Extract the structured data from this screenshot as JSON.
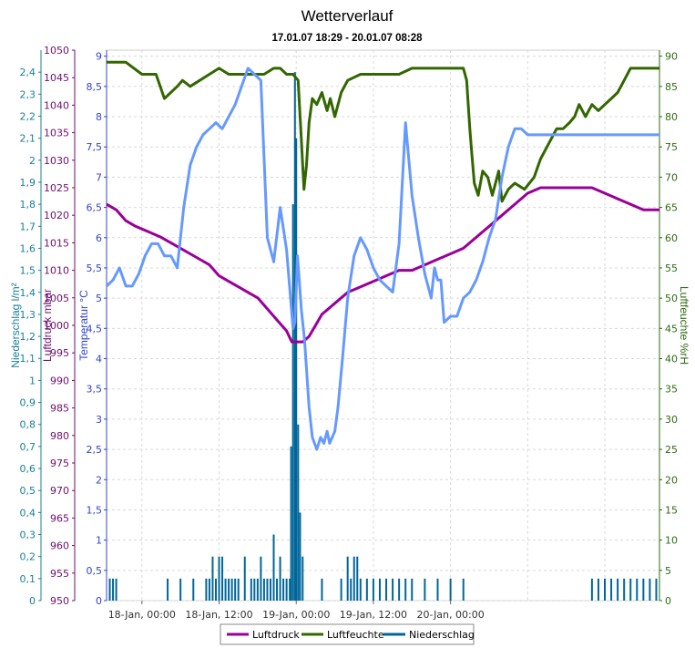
{
  "chart_data": {
    "type": "line",
    "title": "Wetterverlauf",
    "subtitle": "17.01.07 18:29 - 20.01.07 08:28",
    "x_ticks": [
      "18-Jan, 00:00",
      "18-Jan, 12:00",
      "19-Jan, 00:00",
      "19-Jan, 12:00",
      "20-Jan, 00:00"
    ],
    "xlim": [
      "17-Jan 18:29",
      "20-Jan 08:28"
    ],
    "grid": true,
    "legend_position": "bottom-center",
    "axes": [
      {
        "key": "niederschlag",
        "label": "Niederschlag l/m²",
        "side": "left",
        "color": "#1b7f96",
        "min": 0,
        "max": 2.5,
        "ticks": [
          "0",
          "0,1",
          "0,2",
          "0,3",
          "0,4",
          "0,5",
          "0,6",
          "0,7",
          "0,8",
          "0,9",
          "1",
          "1,1",
          "1,2",
          "1,3",
          "1,4",
          "1,5",
          "1,6",
          "1,7",
          "1,8",
          "1,9",
          "2",
          "2,1",
          "2,2",
          "2,3",
          "2,4"
        ]
      },
      {
        "key": "luftdruck",
        "label": "Luftdruck mbar",
        "side": "left",
        "color": "#6f0f6f",
        "min": 950,
        "max": 1050,
        "ticks": [
          "950",
          "955",
          "960",
          "965",
          "970",
          "975",
          "980",
          "985",
          "990",
          "995",
          "1000",
          "1005",
          "1010",
          "1015",
          "1020",
          "1025",
          "1030",
          "1035",
          "1040",
          "1045",
          "1050"
        ]
      },
      {
        "key": "temperatur",
        "label": "Temperatur °C",
        "side": "left",
        "color": "#3344cc",
        "min": 0,
        "max": 9.1,
        "ticks": [
          "0",
          "0,5",
          "1",
          "1,5",
          "2",
          "2,5",
          "3",
          "3,5",
          "4",
          "4,5",
          "5",
          "5,5",
          "6",
          "6,5",
          "7",
          "7,5",
          "8",
          "8,5",
          "9"
        ]
      },
      {
        "key": "luftfeuchte",
        "label": "Luftfeuchte %rH",
        "side": "right",
        "color": "#2e6b12",
        "min": 0,
        "max": 91,
        "ticks": [
          "0",
          "5",
          "10",
          "15",
          "20",
          "25",
          "30",
          "35",
          "40",
          "45",
          "50",
          "55",
          "60",
          "65",
          "70",
          "75",
          "80",
          "85",
          "90"
        ]
      }
    ],
    "series": [
      {
        "name": "Luftdruck",
        "axis": "luftdruck",
        "color": "#990099",
        "x": [
          -5.5,
          -4,
          -2.5,
          -1,
          1,
          3,
          4.5,
          6,
          7.5,
          9,
          10.5,
          12,
          13.5,
          15,
          16.5,
          18,
          19.5,
          21,
          22.5,
          23.3,
          24,
          25,
          26,
          27,
          28,
          30,
          32,
          34,
          36,
          38,
          40,
          42,
          44,
          46,
          48,
          50,
          52,
          54,
          56,
          58,
          60,
          62,
          64,
          66,
          68,
          70,
          72,
          74,
          76,
          78,
          80,
          80.5
        ],
        "y": [
          1022,
          1021,
          1019,
          1018,
          1017,
          1016,
          1015,
          1014,
          1013,
          1012,
          1011,
          1009,
          1008,
          1007,
          1006,
          1005,
          1003,
          1001,
          999,
          997,
          997,
          997,
          998,
          1000,
          1002,
          1004,
          1006,
          1007,
          1008,
          1009,
          1010,
          1010,
          1011,
          1012,
          1013,
          1014,
          1016,
          1018,
          1020,
          1022,
          1024,
          1025,
          1025,
          1025,
          1025,
          1025,
          1024,
          1023,
          1022,
          1021,
          1021,
          1021
        ]
      },
      {
        "name": "Luftfeuchte",
        "axis": "luftfeuchte",
        "color": "#336600",
        "x": [
          -5.5,
          -2.5,
          0,
          2.2,
          3.5,
          5.5,
          6.3,
          7.5,
          9,
          10.5,
          12,
          13.5,
          15,
          17,
          19,
          20.5,
          21.5,
          22.5,
          23.5,
          24.3,
          24.8,
          25.2,
          25.6,
          26,
          26.5,
          27.2,
          28,
          28.8,
          29.3,
          30,
          31,
          32,
          34,
          36,
          38,
          40,
          42,
          44,
          46,
          48,
          50,
          50.5,
          51,
          51.3,
          51.7,
          52.3,
          53,
          53.8,
          54.5,
          55.5,
          56,
          57,
          58,
          59.5,
          61,
          62,
          63.5,
          64.5,
          65.5,
          66.5,
          67.3,
          68,
          69,
          70,
          71,
          72,
          73,
          74,
          75,
          76,
          77,
          78,
          79,
          80,
          80.5
        ],
        "y": [
          89,
          89,
          87,
          87,
          83,
          85,
          86,
          85,
          86,
          87,
          88,
          87,
          87,
          87,
          87,
          88,
          88,
          87,
          87,
          86,
          76,
          68,
          72,
          79,
          83,
          82,
          84,
          81,
          83,
          80,
          84,
          86,
          87,
          87,
          87,
          87,
          88,
          88,
          88,
          88,
          88,
          86,
          78,
          74,
          69,
          67,
          71,
          70,
          67,
          71,
          66,
          68,
          69,
          68,
          70,
          73,
          76,
          78,
          78,
          79,
          80,
          82,
          80,
          82,
          81,
          82,
          83,
          84,
          86,
          88,
          88,
          88,
          88,
          88,
          88
        ]
      },
      {
        "name": "Temperatur",
        "axis": "temperatur",
        "color": "#6699ff",
        "x": [
          -5.5,
          -4.5,
          -3.5,
          -2.5,
          -1.5,
          -0.5,
          0.5,
          1.5,
          2.5,
          3.5,
          4.5,
          5.5,
          6.5,
          7.5,
          8.5,
          9.5,
          10.5,
          11.5,
          12.5,
          13.5,
          14.5,
          15.5,
          16.5,
          17.5,
          18.5,
          19.5,
          20.5,
          21.5,
          22.5,
          23.5,
          23.8,
          24.2,
          24.8,
          25.3,
          26,
          26.5,
          27.2,
          27.8,
          28.3,
          28.8,
          29.2,
          30,
          30.5,
          31.2,
          32,
          33,
          34,
          35,
          36,
          37,
          38,
          39,
          40,
          41,
          42,
          43,
          44,
          45,
          45.5,
          46,
          46.5,
          47,
          48,
          49,
          50,
          51,
          52,
          53,
          54,
          55,
          56,
          57,
          58,
          59,
          60,
          61,
          62,
          63,
          64,
          65,
          66,
          67,
          68,
          69,
          70,
          71,
          72,
          73,
          74,
          75,
          76,
          77,
          78,
          79,
          80,
          80.5
        ],
        "y": [
          5.2,
          5.3,
          5.5,
          5.2,
          5.2,
          5.4,
          5.7,
          5.9,
          5.9,
          5.7,
          5.7,
          5.5,
          6.5,
          7.2,
          7.5,
          7.7,
          7.8,
          7.9,
          7.8,
          8,
          8.2,
          8.5,
          8.8,
          8.7,
          8.6,
          6,
          5.6,
          6.5,
          5.8,
          4.5,
          4.6,
          5.7,
          4.8,
          4.3,
          3.2,
          2.7,
          2.5,
          2.7,
          2.6,
          2.8,
          2.6,
          2.8,
          3.2,
          4,
          5,
          5.7,
          6,
          5.8,
          5.5,
          5.3,
          5.2,
          5.1,
          5.9,
          7.9,
          6.7,
          6,
          5.4,
          5,
          5.5,
          5.3,
          5.3,
          4.6,
          4.7,
          4.7,
          5,
          5.1,
          5.3,
          5.6,
          6,
          6.3,
          7,
          7.5,
          7.8,
          7.8,
          7.7,
          7.7,
          7.7,
          7.7,
          7.7,
          7.7,
          7.7,
          7.7,
          7.7,
          7.7,
          7.7,
          7.7,
          7.7,
          7.7,
          7.7,
          7.7,
          7.7,
          7.7,
          7.7,
          7.7,
          7.7,
          7.7
        ]
      },
      {
        "name": "Niederschlag",
        "axis": "niederschlag",
        "color": "#006699",
        "x": [
          -5,
          -4.5,
          -4,
          4,
          6,
          8,
          10,
          10.5,
          11,
          11.5,
          12,
          12.5,
          13,
          13.5,
          14,
          14.5,
          15,
          16,
          17,
          17.5,
          18,
          18.5,
          19,
          19.5,
          20,
          20.5,
          21,
          21.5,
          22,
          22.5,
          23,
          23.2,
          23.5,
          23.8,
          24,
          24.3,
          24.6,
          25,
          28,
          31,
          32,
          32.5,
          33,
          33.5,
          34,
          35,
          36,
          37,
          38,
          39,
          40,
          41,
          42,
          44,
          46,
          48,
          50,
          70,
          71,
          72,
          73,
          74,
          75,
          76,
          77,
          78,
          79,
          80
        ],
        "y": [
          0.1,
          0.1,
          0.1,
          0.1,
          0.1,
          0.1,
          0.1,
          0.1,
          0.2,
          0.1,
          0.2,
          0.2,
          0.1,
          0.1,
          0.1,
          0.1,
          0.1,
          0.2,
          0.1,
          0.1,
          0.1,
          0.2,
          0.1,
          0.1,
          0.1,
          0.3,
          0.1,
          0.2,
          0.1,
          0.1,
          0.1,
          0.7,
          1.8,
          2.4,
          2.1,
          0.8,
          0.4,
          0.2,
          0.1,
          0.1,
          0.2,
          0.1,
          0.2,
          0.2,
          0.1,
          0.1,
          0.1,
          0.1,
          0.1,
          0.1,
          0.1,
          0.1,
          0.1,
          0.1,
          0.1,
          0.1,
          0.1,
          0.1,
          0.1,
          0.1,
          0.1,
          0.1,
          0.1,
          0.1,
          0.1,
          0.1,
          0.1,
          0.1
        ]
      }
    ]
  }
}
